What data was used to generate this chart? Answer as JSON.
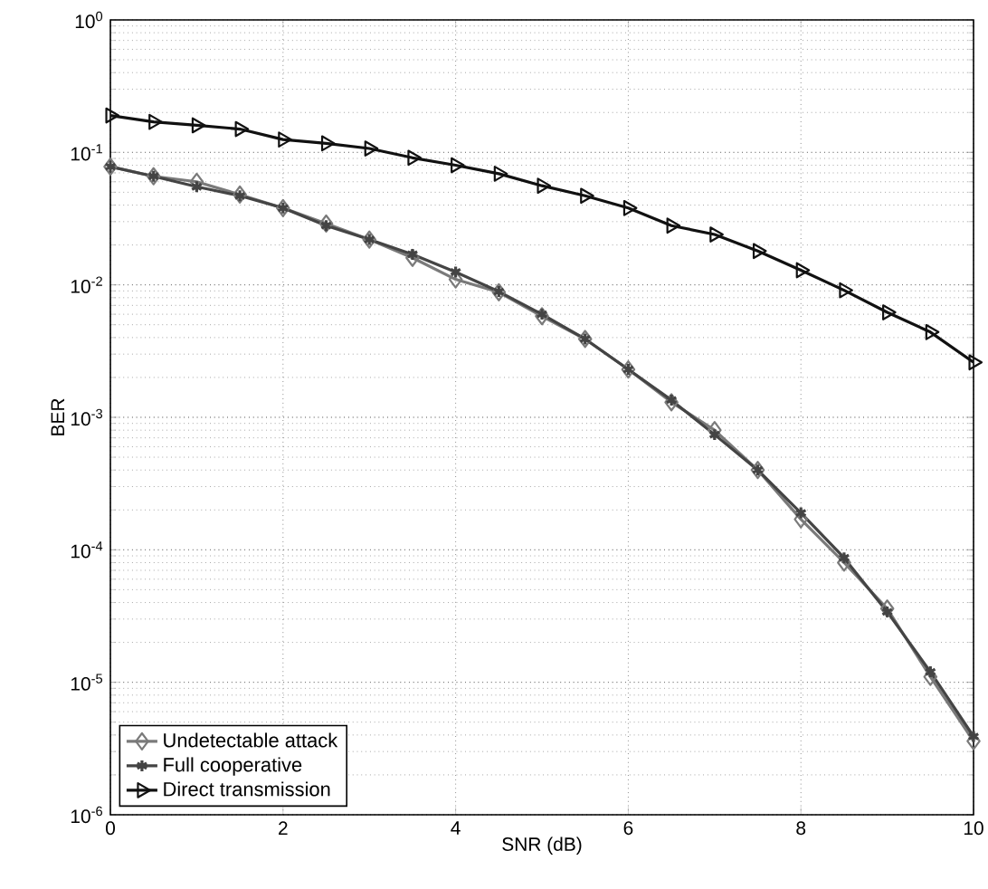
{
  "chart_data": {
    "type": "line",
    "xlabel": "SNR (dB)",
    "ylabel": "BER",
    "x": [
      0,
      0.5,
      1,
      1.5,
      2,
      2.5,
      3,
      3.5,
      4,
      4.5,
      5,
      5.5,
      6,
      6.5,
      7,
      7.5,
      8,
      8.5,
      9,
      9.5,
      10
    ],
    "series": [
      {
        "name": "Undetectable attack",
        "color": "#7a7a7a",
        "marker": "diamond",
        "values": [
          0.078,
          0.066,
          0.06,
          0.048,
          0.038,
          0.029,
          0.022,
          0.016,
          0.011,
          0.0088,
          0.0058,
          0.0039,
          0.0023,
          0.0013,
          0.0008,
          0.0004,
          0.00017,
          8e-05,
          3.6e-05,
          1.1e-05,
          3.6e-06
        ]
      },
      {
        "name": "Full cooperative",
        "color": "#444444",
        "marker": "cross",
        "values": [
          0.078,
          0.066,
          0.055,
          0.047,
          0.038,
          0.028,
          0.022,
          0.017,
          0.0125,
          0.0089,
          0.006,
          0.0039,
          0.0023,
          0.00135,
          0.00074,
          0.0004,
          0.00019,
          8.7e-05,
          3.4e-05,
          1.2e-05,
          3.9e-06
        ]
      },
      {
        "name": "Direct transmission",
        "color": "#111111",
        "marker": "triangle",
        "values": [
          0.19,
          0.17,
          0.16,
          0.15,
          0.125,
          0.117,
          0.107,
          0.091,
          0.08,
          0.069,
          0.056,
          0.047,
          0.038,
          0.028,
          0.024,
          0.018,
          0.0129,
          0.0091,
          0.0062,
          0.0044,
          0.0026
        ]
      }
    ],
    "xlim": [
      0,
      10
    ],
    "xticks": [
      0,
      2,
      4,
      6,
      8,
      10
    ],
    "ylim": [
      1e-06,
      1
    ],
    "yticks": [
      {
        "value": 1e-06,
        "label": "10$^{-6}$"
      },
      {
        "value": 1e-05,
        "label": "10$^{-5}$"
      },
      {
        "value": 0.0001,
        "label": "10$^{-4}$"
      },
      {
        "value": 0.001,
        "label": "10$^{-3}$"
      },
      {
        "value": 0.01,
        "label": "10$^{-2}$"
      },
      {
        "value": 0.1,
        "label": "10$^{-1}$"
      },
      {
        "value": 1,
        "label": "10$^{0}$"
      }
    ],
    "log": "y",
    "grid": true,
    "legend": "bottom left",
    "line_style": "solid"
  }
}
